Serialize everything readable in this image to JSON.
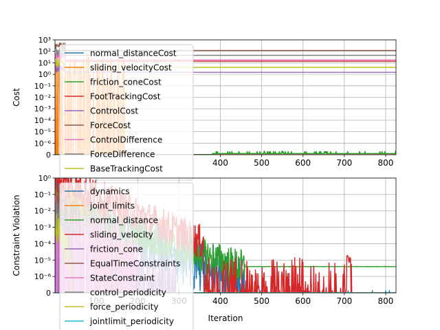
{
  "chart_data": [
    {
      "type": "line",
      "ylabel": "Cost",
      "xlabel": "",
      "yscale": "symlog",
      "xlim": [
        0,
        825
      ],
      "ylim": [
        0,
        1000
      ],
      "grid": true,
      "legend_position": "upper-left",
      "x_ticks": [
        "400",
        "500",
        "600",
        "700",
        "800"
      ],
      "y_ticks": [
        "0",
        "10⁻⁶",
        "10⁻⁵",
        "10⁻⁴",
        "10⁻³",
        "10⁻²",
        "10⁻¹",
        "10⁰",
        "10¹",
        "10²",
        "10³"
      ],
      "series": [
        {
          "name": "normal_distanceCost",
          "color": "#1f77b4",
          "level": 0,
          "spiky": false
        },
        {
          "name": "sliding_velocityCost",
          "color": "#ff7f0e",
          "level": 0.0,
          "spiky": true,
          "spike_until": 170
        },
        {
          "name": "friction_coneCost",
          "color": "#2ca02c",
          "level": 0.0,
          "spiky": false
        },
        {
          "name": "FootTrackingCost",
          "color": "#d62728",
          "level": 14,
          "spiky": false
        },
        {
          "name": "ControlCost",
          "color": "#9467bd",
          "level": 1.5,
          "spiky": false
        },
        {
          "name": "ForceCost",
          "color": "#8c564b",
          "level": 120,
          "spiky": false
        },
        {
          "name": "ControlDifference",
          "color": "#e377c2",
          "level": 18,
          "spiky": false
        },
        {
          "name": "ForceDifference",
          "color": "#7f7f7f",
          "level": 45,
          "spiky": false
        },
        {
          "name": "BaseTrackingCost",
          "color": "#bcbd22",
          "level": 4,
          "spiky": false
        }
      ]
    },
    {
      "type": "line",
      "ylabel": "Constraint Violation",
      "xlabel": "Iteration",
      "yscale": "symlog",
      "xlim": [
        0,
        825
      ],
      "ylim": [
        0,
        1
      ],
      "grid": true,
      "legend_position": "upper-left",
      "x_ticks": [
        "100",
        "200",
        "300",
        "400",
        "500",
        "600",
        "700",
        "800"
      ],
      "y_ticks": [
        "0",
        "10⁻⁶",
        "10⁻⁵",
        "10⁻⁴",
        "10⁻³",
        "10⁻²",
        "10⁻¹",
        "10⁰"
      ],
      "series": [
        {
          "name": "dynamics",
          "color": "#1f77b4"
        },
        {
          "name": "joint_limits",
          "color": "#ff7f0e"
        },
        {
          "name": "normal_distance",
          "color": "#2ca02c",
          "tail_level": 4e-06
        },
        {
          "name": "sliding_velocity",
          "color": "#d62728"
        },
        {
          "name": "friction_cone",
          "color": "#9467bd"
        },
        {
          "name": "EqualTimeConstraints",
          "color": "#8c564b"
        },
        {
          "name": "StateConstraint",
          "color": "#e377c2"
        },
        {
          "name": "control_periodicity",
          "color": "#7f7f7f"
        },
        {
          "name": "force_periodicity",
          "color": "#bcbd22"
        },
        {
          "name": "jointlimit_periodicity",
          "color": "#17becf"
        }
      ]
    }
  ]
}
